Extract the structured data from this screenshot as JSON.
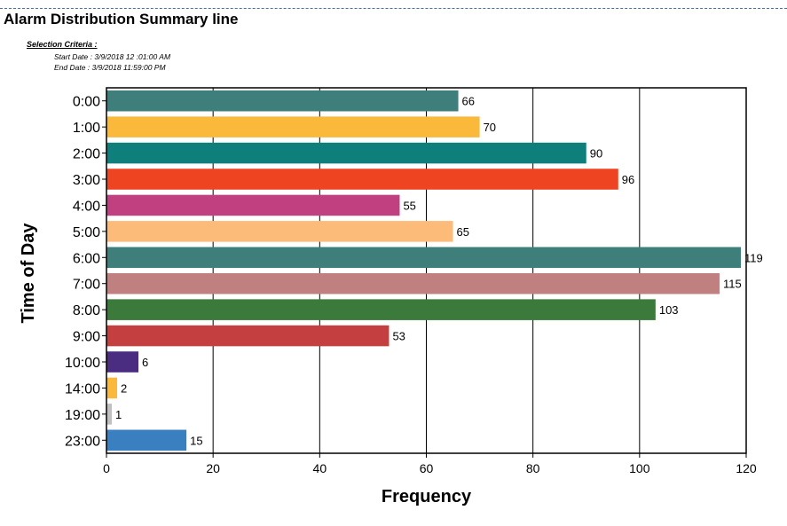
{
  "report": {
    "title": "Alarm Distribution Summary line",
    "criteria_label": "Selection Criteria :",
    "start_date": "Start Date : 3/9/2018 12 :01:00 AM",
    "end_date": "End Date : 3/9/2018 11:59:00 PM"
  },
  "chart_data": {
    "type": "bar",
    "orientation": "horizontal",
    "xlabel": "Frequency",
    "ylabel": "Time of Day",
    "xlim": [
      0,
      120
    ],
    "xticks": [
      0,
      20,
      40,
      60,
      80,
      100,
      120
    ],
    "grid": "vertical",
    "categories": [
      "0:00",
      "1:00",
      "2:00",
      "3:00",
      "4:00",
      "5:00",
      "6:00",
      "7:00",
      "8:00",
      "9:00",
      "10:00",
      "14:00",
      "19:00",
      "23:00"
    ],
    "values": [
      66,
      70,
      90,
      96,
      55,
      65,
      119,
      115,
      103,
      53,
      6,
      2,
      1,
      15
    ],
    "colors": [
      "#3f7f7b",
      "#fbb93c",
      "#0f7f7b",
      "#ef4422",
      "#c04080",
      "#fdbb7a",
      "#3f7f7b",
      "#c18080",
      "#3c7a3c",
      "#c44040",
      "#4a2d80",
      "#fbb93c",
      "#c0c0c0",
      "#3a7fc0"
    ]
  }
}
